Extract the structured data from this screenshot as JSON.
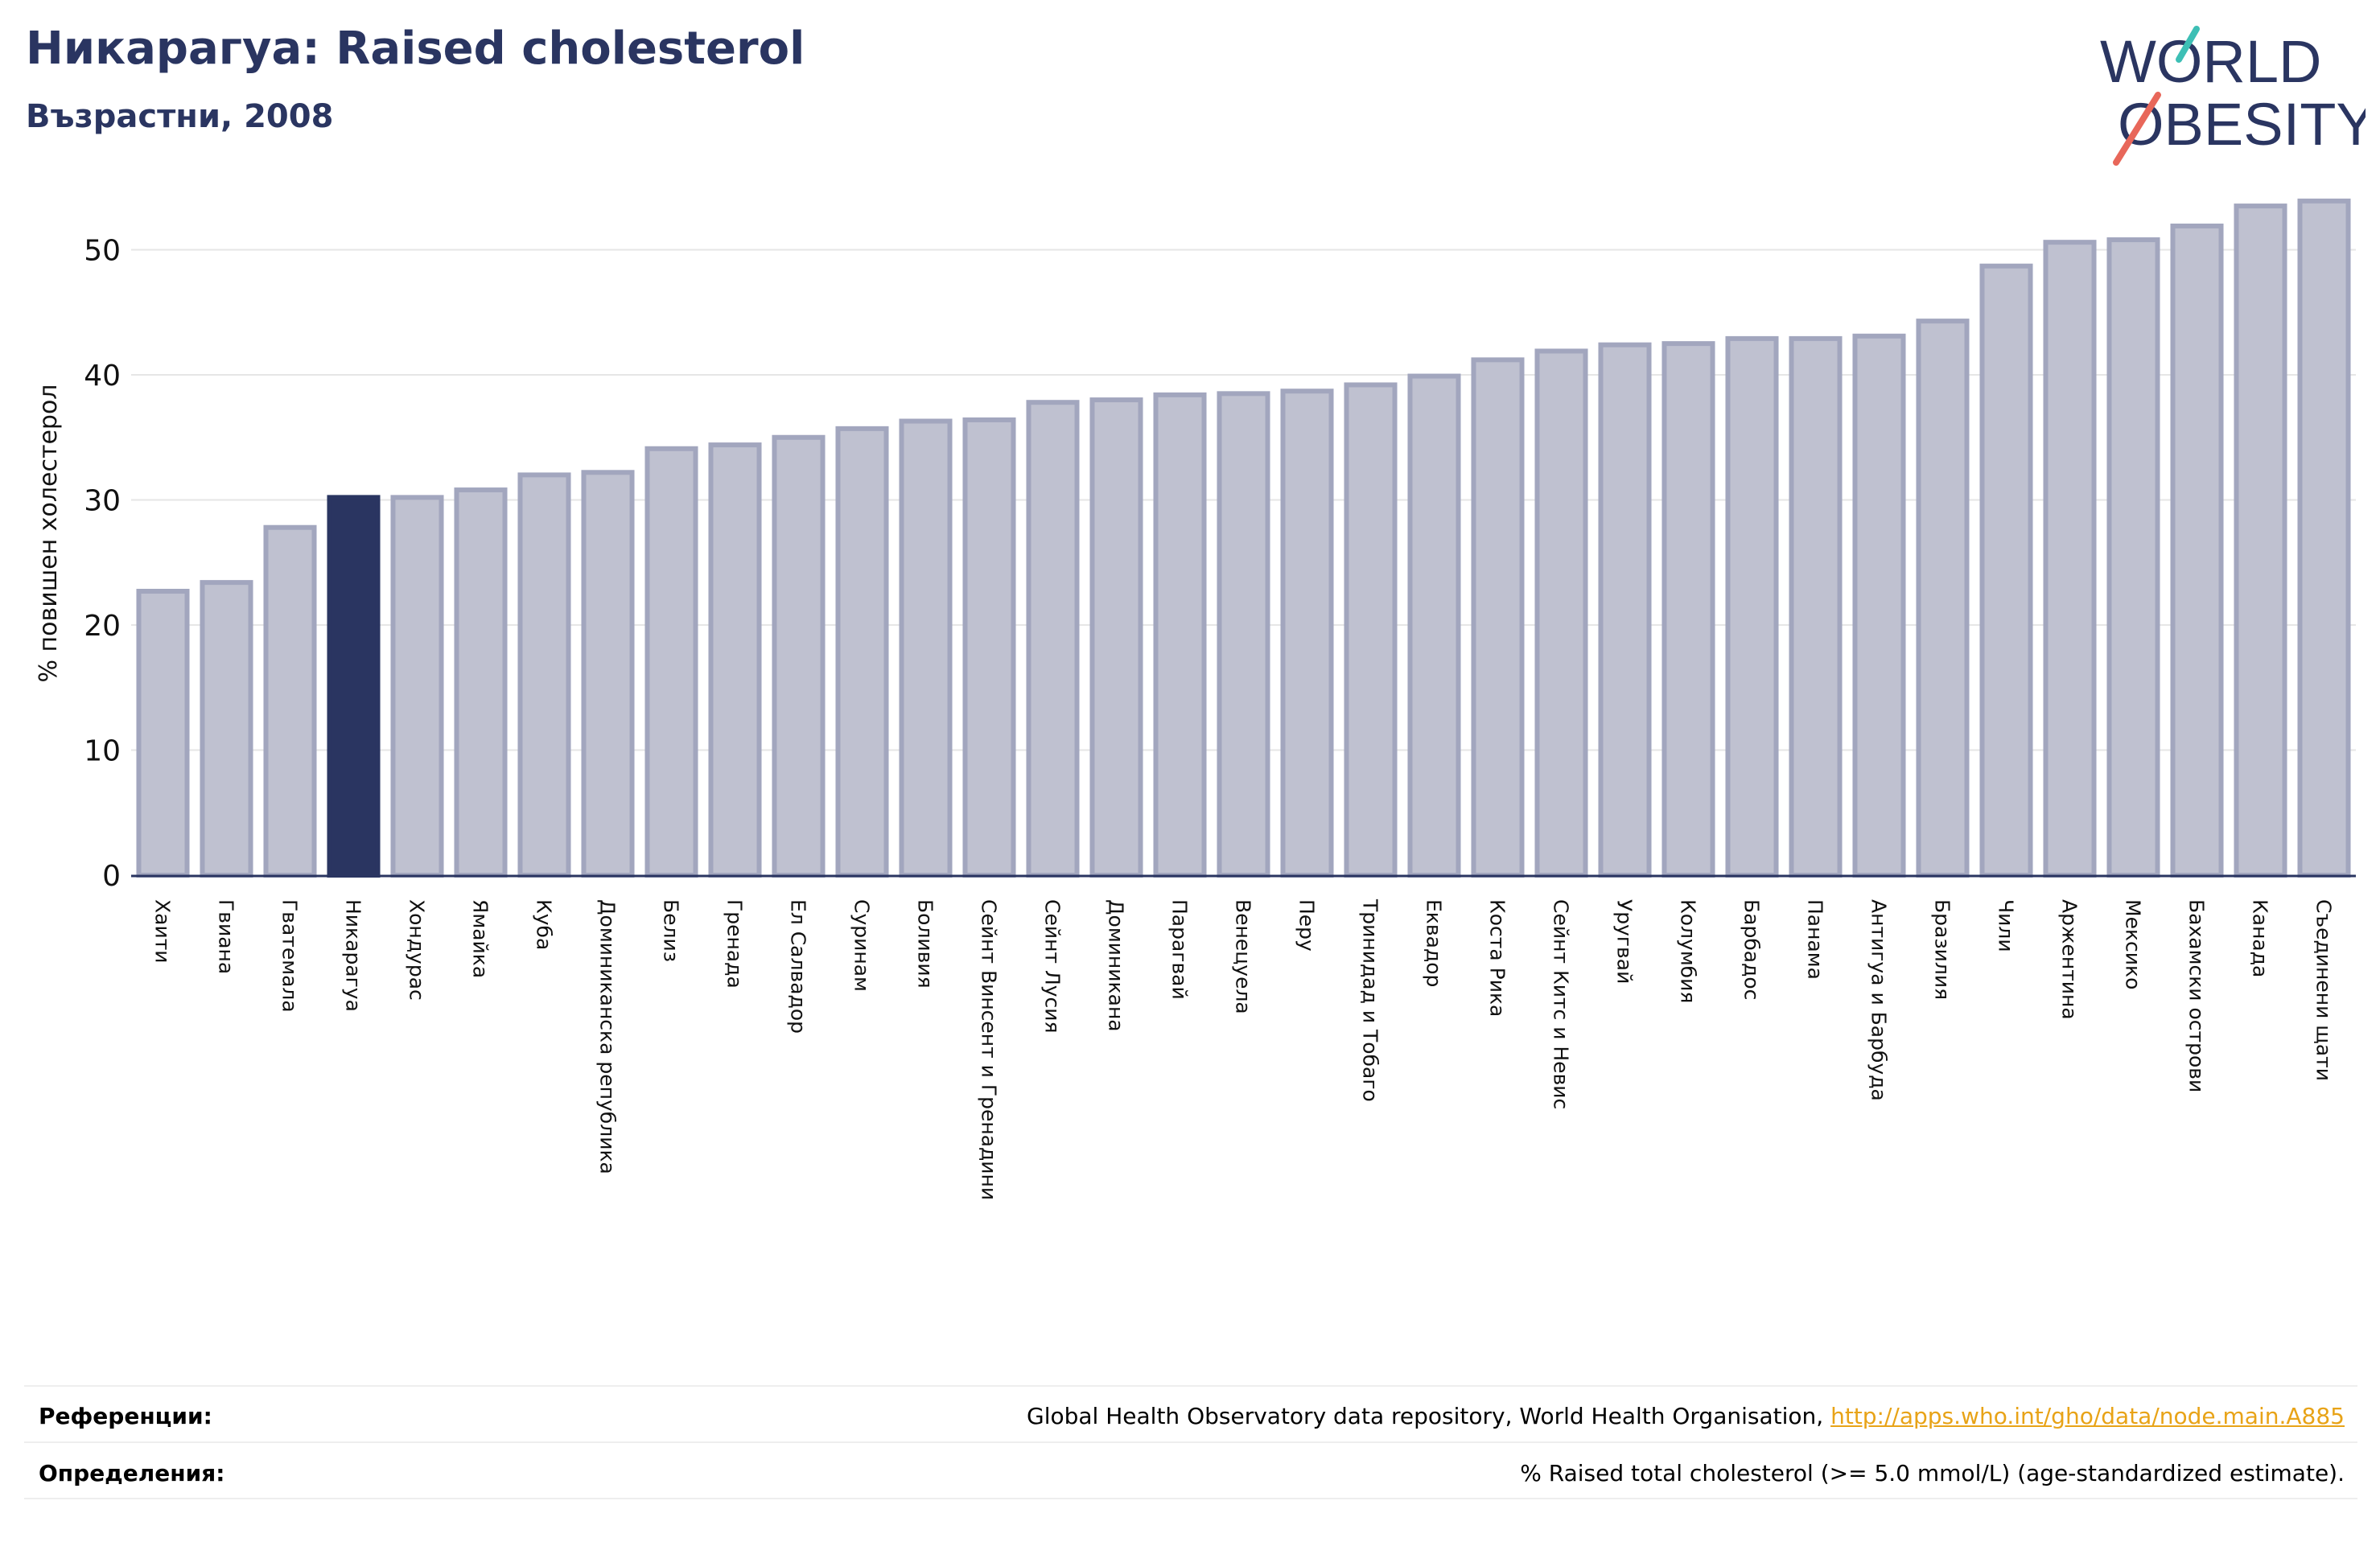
{
  "header": {
    "title": "Никарагуа: Raised cholesterol",
    "subtitle": "Възрастни, 2008"
  },
  "logo": {
    "line1": "WORLD",
    "line2": "OBESITY"
  },
  "colors": {
    "bar": "#bfc1d0",
    "bar_edge": "#a2a6be",
    "highlight": "#2a3561",
    "text": "#2a3561",
    "link": "#e8a317",
    "logo_teal": "#3dbfb5",
    "logo_red": "#e8675a"
  },
  "chart_data": {
    "type": "bar",
    "ylabel": "% повишен холестерол",
    "ylim": [
      0,
      55
    ],
    "yticks": [
      0,
      10,
      20,
      30,
      40,
      50
    ],
    "grid": true,
    "highlight": "Никарагуа",
    "categories": [
      "Хаити",
      "Гвиана",
      "Гватемала",
      "Никарагуа",
      "Хондурас",
      "Ямайка",
      "Куба",
      "Доминиканска република",
      "Белиз",
      "Гренада",
      "Ел Салвадор",
      "Суринам",
      "Боливия",
      "Сейнт Винсент и Гренадини",
      "Сейнт Лусия",
      "Доминикана",
      "Парагвай",
      "Венецуела",
      "Перу",
      "Тринидад и Тобаго",
      "Еквадор",
      "Коста Рика",
      "Сейнт Китс и Невис",
      "Уругвай",
      "Колумбия",
      "Барбадос",
      "Панама",
      "Антигуа и Барбуда",
      "Бразилия",
      "Чили",
      "Аржентина",
      "Мексико",
      "Бахамски острови",
      "Канада",
      "Съединени щати"
    ],
    "values": [
      22.7,
      23.4,
      27.8,
      30.2,
      30.2,
      30.8,
      32.0,
      32.2,
      34.1,
      34.4,
      35.0,
      35.7,
      36.3,
      36.4,
      37.8,
      38.0,
      38.4,
      38.5,
      38.7,
      39.2,
      39.9,
      41.2,
      41.9,
      42.4,
      42.5,
      42.9,
      42.9,
      43.1,
      44.3,
      48.7,
      50.6,
      50.8,
      51.9,
      53.5,
      53.9
    ]
  },
  "footer": {
    "references_label": "Референции:",
    "references_text": "Global Health Observatory data repository, World Health Organisation, ",
    "references_link": "http://apps.who.int/gho/data/node.main.A885",
    "definitions_label": "Определения:",
    "definitions_text": "% Raised total cholesterol (>= 5.0 mmol/L) (age-standardized estimate)."
  }
}
